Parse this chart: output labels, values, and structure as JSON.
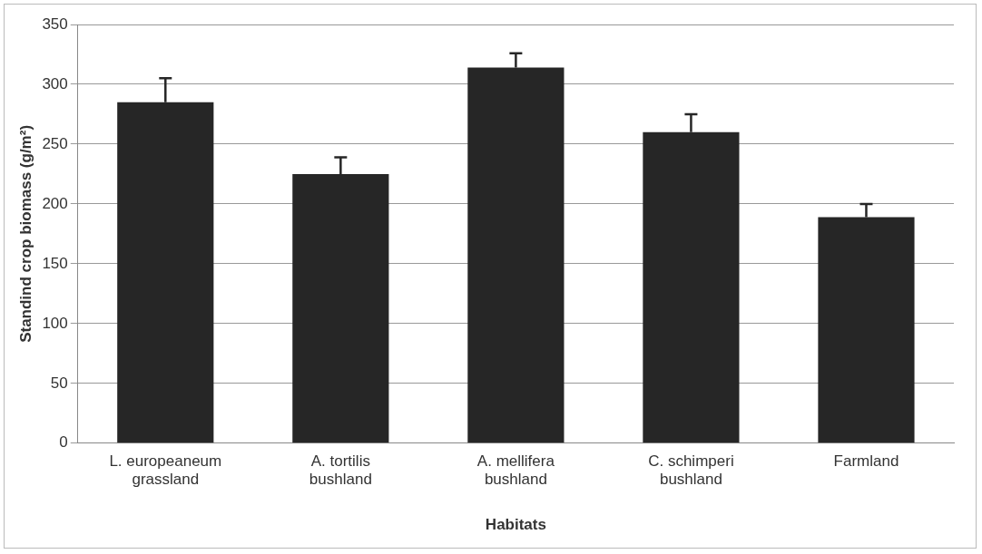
{
  "chart_data": {
    "type": "bar",
    "xlabel": "Habitats",
    "ylabel": "Standind crop biomass (g/m²)",
    "categories": [
      "L. europeaneum grassland",
      "A. tortilis bushland",
      "A. mellifera bushland",
      "C. schimperi bushland",
      "Farmland"
    ],
    "values": [
      285,
      225,
      314,
      260,
      189
    ],
    "errors": [
      [
        285,
        305
      ],
      [
        225,
        239
      ],
      [
        314,
        326
      ],
      [
        260,
        275
      ],
      [
        189,
        200
      ]
    ],
    "color": "#262626",
    "ylim": [
      0,
      350
    ],
    "yticks": [
      0,
      50,
      100,
      150,
      200,
      250,
      300,
      350
    ],
    "grid": "y",
    "legend": false
  }
}
